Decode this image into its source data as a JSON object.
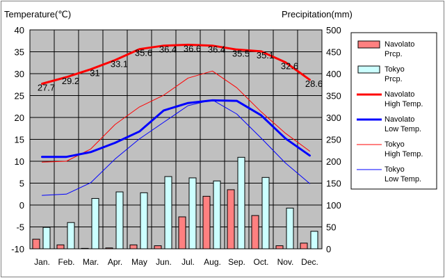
{
  "chart_data": {
    "type": "bar",
    "title": "",
    "ylabel": "Temperature(℃)",
    "y2label": "Precipitation(mm)",
    "ylim": [
      -10,
      40
    ],
    "y2lim": [
      0,
      500
    ],
    "yticks": [
      "40",
      "35",
      "30",
      "25",
      "20",
      "15",
      "10",
      "5",
      "0",
      "-5",
      "-10"
    ],
    "y2ticks": [
      "500",
      "450",
      "400",
      "350",
      "300",
      "250",
      "200",
      "150",
      "100",
      "50",
      "0"
    ],
    "categories": [
      "Jan.",
      "Feb.",
      "Mar.",
      "Apr.",
      "May",
      "Jun.",
      "Jul.",
      "Aug.",
      "Sep.",
      "Oct.",
      "Nov.",
      "Dec."
    ],
    "grid": true,
    "legend_position": "right",
    "series": [
      {
        "name": "Navolato Prcp.",
        "kind": "bar",
        "axis": "right",
        "color": "#ff8080",
        "edge": "#000000",
        "values": [
          22,
          9,
          1,
          2,
          9,
          7,
          73,
          120,
          135,
          76,
          7,
          13
        ]
      },
      {
        "name": "Tokyo Prcp.",
        "kind": "bar",
        "axis": "right",
        "color": "#ccffff",
        "edge": "#000000",
        "values": [
          49,
          60,
          115,
          130,
          128,
          165,
          162,
          155,
          209,
          163,
          93,
          40
        ]
      },
      {
        "name": "Navolato High Temp.",
        "kind": "line",
        "axis": "left",
        "color": "#ff0000",
        "width": 3,
        "values": [
          27.7,
          29.2,
          31,
          33.1,
          35.6,
          36.4,
          36.6,
          36.4,
          35.5,
          35.1,
          32.6,
          28.6
        ],
        "labels": [
          "27.7",
          "29.2",
          "31",
          "33.1",
          "35.6",
          "36.4",
          "36.6",
          "36.4",
          "35.5",
          "35.1",
          "32.6",
          "28.6"
        ]
      },
      {
        "name": "Navolato Low Temp.",
        "kind": "line",
        "axis": "left",
        "color": "#0000ff",
        "width": 3,
        "values": [
          11,
          11,
          12.1,
          14.2,
          16.8,
          21.6,
          23.3,
          23.9,
          23.8,
          20.5,
          15.2,
          11.3
        ]
      },
      {
        "name": "Tokyo High Temp.",
        "kind": "line",
        "axis": "left",
        "color": "#ff0000",
        "width": 1,
        "values": [
          9.8,
          10,
          12.8,
          18.4,
          22.4,
          25.1,
          29,
          30.6,
          26.8,
          21.3,
          16.4,
          12.3
        ]
      },
      {
        "name": "Tokyo Low Temp.",
        "kind": "line",
        "axis": "left",
        "color": "#0000ff",
        "width": 1,
        "values": [
          2.2,
          2.5,
          5.1,
          10.5,
          15.1,
          18.9,
          22.7,
          24.0,
          20.8,
          15.3,
          9.6,
          4.9
        ]
      }
    ],
    "legend": [
      {
        "name": "Navolato Prcp.",
        "lines": [
          "Navolato",
          "Prcp."
        ],
        "swatch": "box",
        "color": "#ff8080"
      },
      {
        "name": "Tokyo Prcp.",
        "lines": [
          "Tokyo",
          "Prcp."
        ],
        "swatch": "box",
        "color": "#ccffff"
      },
      {
        "name": "Navolato High Temp.",
        "lines": [
          "Navolato",
          "High Temp."
        ],
        "swatch": "line",
        "color": "#ff0000",
        "width": 3
      },
      {
        "name": "Navolato Low Temp.",
        "lines": [
          "Navolato",
          "Low Temp."
        ],
        "swatch": "line",
        "color": "#0000ff",
        "width": 3
      },
      {
        "name": "Tokyo High Temp.",
        "lines": [
          "Tokyo",
          "High Temp."
        ],
        "swatch": "line",
        "color": "#ff0000",
        "width": 1
      },
      {
        "name": "Tokyo Low Temp.",
        "lines": [
          "Tokyo",
          "Low Temp."
        ],
        "swatch": "line",
        "color": "#0000ff",
        "width": 1
      }
    ]
  }
}
